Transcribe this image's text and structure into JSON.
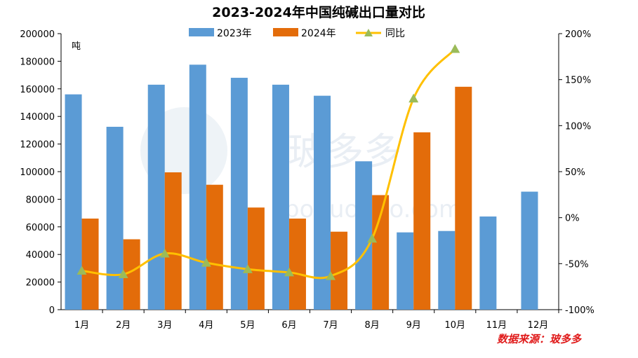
{
  "chart_data": {
    "type": "bar",
    "title": "2023-2024年中国纯碱出口量对比",
    "categories": [
      "1月",
      "2月",
      "3月",
      "4月",
      "5月",
      "6月",
      "7月",
      "8月",
      "9月",
      "10月",
      "11月",
      "12月"
    ],
    "series": [
      {
        "name": "2023年",
        "type": "bar",
        "axis": "left",
        "color": "#5b9bd5",
        "values": [
          156000,
          132500,
          163000,
          177500,
          168000,
          163000,
          155000,
          107500,
          56000,
          57000,
          67500,
          85500
        ]
      },
      {
        "name": "2024年",
        "type": "bar",
        "axis": "left",
        "color": "#e36c0a",
        "values": [
          66000,
          51000,
          99500,
          90500,
          74000,
          66000,
          56500,
          83000,
          128500,
          161500,
          null,
          null
        ]
      },
      {
        "name": "同比",
        "type": "line",
        "axis": "right",
        "color": "#ffc000",
        "marker_color": "#9bbb59",
        "values": [
          -57.7,
          -61.5,
          -39.0,
          -49.0,
          -56.0,
          -59.5,
          -63.5,
          -22.8,
          129.5,
          183.3,
          null,
          null
        ]
      }
    ],
    "y_left": {
      "unit_label": "吨",
      "ylim": [
        0,
        200000
      ],
      "ticks": [
        "0",
        "20000",
        "40000",
        "60000",
        "80000",
        "100000",
        "120000",
        "140000",
        "160000",
        "180000",
        "200000"
      ]
    },
    "y_right": {
      "ylim": [
        -100,
        200
      ],
      "ticks": [
        "-100%",
        "-50%",
        "0%",
        "50%",
        "100%",
        "150%",
        "200%"
      ]
    },
    "legend_position": "top",
    "grid": false
  },
  "source_text": "数据来源：玻多多",
  "watermark": {
    "brand": "玻多多",
    "url": "boduoduo.com"
  }
}
